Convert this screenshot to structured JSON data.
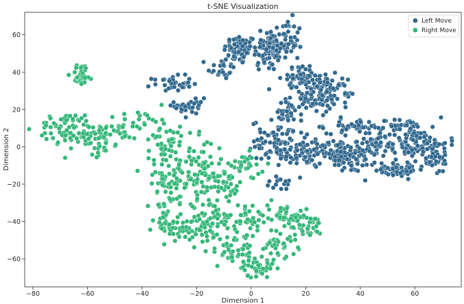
{
  "chart_data": {
    "type": "scatter",
    "title": "t-SNE Visualization",
    "xlabel": "Dimension 1",
    "ylabel": "Dimension 2",
    "xlim": [
      -83,
      77
    ],
    "ylim": [
      -75,
      72
    ],
    "xticks": [
      -80,
      -60,
      -40,
      -20,
      0,
      20,
      40,
      60
    ],
    "yticks": [
      -60,
      -40,
      -20,
      0,
      20,
      40,
      60
    ],
    "grid": false,
    "legend_position": "top-right",
    "series": [
      {
        "name": "Left Move",
        "color": "#31688e",
        "clusters": [
          {
            "cx": -4,
            "cy": 52,
            "sx": 3.0,
            "sy": 4.0,
            "n": 70
          },
          {
            "cx": -11,
            "cy": 42,
            "sx": 2.5,
            "sy": 3.0,
            "n": 25
          },
          {
            "cx": 6,
            "cy": 52,
            "sx": 3.0,
            "sy": 6.0,
            "n": 65
          },
          {
            "cx": 12,
            "cy": 56,
            "sx": 3.5,
            "sy": 6.0,
            "n": 70
          },
          {
            "cx": -29,
            "cy": 34,
            "sx": 3.5,
            "sy": 2.0,
            "n": 35
          },
          {
            "cx": -22,
            "cy": 22,
            "sx": 3.0,
            "sy": 4.0,
            "n": 30
          },
          {
            "cx": 18,
            "cy": 38,
            "sx": 3.5,
            "sy": 2.5,
            "n": 40
          },
          {
            "cx": 22,
            "cy": 28,
            "sx": 4.5,
            "sy": 6.0,
            "n": 90
          },
          {
            "cx": 29,
            "cy": 30,
            "sx": 3.0,
            "sy": 3.0,
            "n": 40
          },
          {
            "cx": 13,
            "cy": 18,
            "sx": 3.0,
            "sy": 3.0,
            "n": 25
          },
          {
            "cx": 36,
            "cy": 28,
            "sx": 1.5,
            "sy": 0.7,
            "n": 8
          },
          {
            "cx": 10,
            "cy": 4,
            "sx": 5.0,
            "sy": 5.0,
            "n": 70
          },
          {
            "cx": 22,
            "cy": -3,
            "sx": 8.0,
            "sy": 3.5,
            "n": 110
          },
          {
            "cx": 35,
            "cy": -6,
            "sx": 5.0,
            "sy": 4.0,
            "n": 60
          },
          {
            "cx": 38,
            "cy": 11,
            "sx": 5.0,
            "sy": 2.0,
            "n": 40
          },
          {
            "cx": 44,
            "cy": 0,
            "sx": 3.5,
            "sy": 3.0,
            "n": 30
          },
          {
            "cx": 52,
            "cy": -12,
            "sx": 6.0,
            "sy": 2.0,
            "n": 60
          },
          {
            "cx": 58,
            "cy": 2,
            "sx": 7.0,
            "sy": 4.0,
            "n": 90
          },
          {
            "cx": 55,
            "cy": 11,
            "sx": 5.0,
            "sy": 2.0,
            "n": 40
          },
          {
            "cx": 67,
            "cy": -5,
            "sx": 3.0,
            "sy": 5.0,
            "n": 45
          },
          {
            "cx": 11,
            "cy": -20,
            "sx": 3.0,
            "sy": 2.0,
            "n": 14
          }
        ]
      },
      {
        "name": "Right Move",
        "color": "#35b779",
        "clusters": [
          {
            "cx": -62,
            "cy": 39,
            "sx": 2.0,
            "sy": 3.0,
            "n": 30
          },
          {
            "cx": -68,
            "cy": 10,
            "sx": 5.0,
            "sy": 4.0,
            "n": 55
          },
          {
            "cx": -58,
            "cy": 6,
            "sx": 5.0,
            "sy": 5.0,
            "n": 55
          },
          {
            "cx": -49,
            "cy": 8,
            "sx": 5.0,
            "sy": 3.0,
            "n": 30
          },
          {
            "cx": -41,
            "cy": 15,
            "sx": 3.0,
            "sy": 2.0,
            "n": 12
          },
          {
            "cx": -32,
            "cy": 4,
            "sx": 3.0,
            "sy": 8.0,
            "n": 40
          },
          {
            "cx": -30,
            "cy": -20,
            "sx": 4.0,
            "sy": 10.0,
            "n": 80
          },
          {
            "cx": -20,
            "cy": -12,
            "sx": 5.0,
            "sy": 8.0,
            "n": 70
          },
          {
            "cx": -10,
            "cy": -18,
            "sx": 4.0,
            "sy": 6.0,
            "n": 50
          },
          {
            "cx": -3,
            "cy": -10,
            "sx": 4.0,
            "sy": 3.0,
            "n": 25
          },
          {
            "cx": -20,
            "cy": -43,
            "sx": 4.0,
            "sy": 5.0,
            "n": 50
          },
          {
            "cx": -12,
            "cy": -40,
            "sx": 4.0,
            "sy": 6.0,
            "n": 50
          },
          {
            "cx": -6,
            "cy": -55,
            "sx": 4.0,
            "sy": 4.0,
            "n": 40
          },
          {
            "cx": 2,
            "cy": -65,
            "sx": 3.0,
            "sy": 2.5,
            "n": 35
          },
          {
            "cx": 10,
            "cy": -52,
            "sx": 3.5,
            "sy": 4.0,
            "n": 40
          },
          {
            "cx": 12,
            "cy": -36,
            "sx": 4.0,
            "sy": 3.0,
            "n": 40
          },
          {
            "cx": 20,
            "cy": -42,
            "sx": 3.0,
            "sy": 3.0,
            "n": 40
          },
          {
            "cx": -2,
            "cy": -38,
            "sx": 3.0,
            "sy": 4.0,
            "n": 30
          },
          {
            "cx": -30,
            "cy": -42,
            "sx": 3.0,
            "sy": 4.0,
            "n": 25
          }
        ]
      }
    ]
  }
}
